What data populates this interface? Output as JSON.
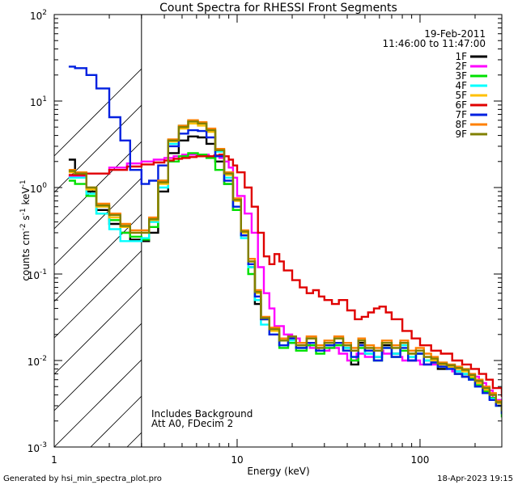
{
  "chart_data": {
    "type": "line",
    "title": "Count Spectra for RHESSI Front Segments",
    "xlabel": "Energy (keV)",
    "ylabel_main": "counts cm",
    "ylabel_exp1": "-2",
    "ylabel_mid": " s",
    "ylabel_exp2": "-1",
    "ylabel_end": " keV",
    "ylabel_exp3": "-1",
    "xscale": "log",
    "yscale": "log",
    "xlim": [
      1,
      280
    ],
    "ylim": [
      0.001,
      100
    ],
    "hatched_region_below_keV": 3,
    "x_ticks": [
      {
        "value": 1,
        "label": "1"
      },
      {
        "value": 10,
        "label": "10"
      },
      {
        "value": 100,
        "label": "100"
      }
    ],
    "y_ticks": [
      {
        "value": 0.001,
        "mant": "10",
        "exp": "-3"
      },
      {
        "value": 0.01,
        "mant": "10",
        "exp": "-2"
      },
      {
        "value": 0.1,
        "mant": "10",
        "exp": "-1"
      },
      {
        "value": 1,
        "mant": "10",
        "exp": "0"
      },
      {
        "value": 10,
        "mant": "10",
        "exp": "1"
      },
      {
        "value": 100,
        "mant": "10",
        "exp": "2"
      }
    ],
    "legend_position": "top-right",
    "date": "19-Feb-2011",
    "time_range": "11:46:00 to 11:47:00",
    "annotations": [
      "Includes Background",
      "Att A0, FDecim 2"
    ],
    "series": [
      {
        "name": "1F",
        "color": "#000000",
        "x": [
          1.2,
          1.3,
          1.5,
          1.7,
          2.0,
          2.3,
          2.6,
          3.0,
          3.3,
          3.7,
          4.2,
          4.8,
          5.4,
          6.1,
          6.8,
          7.6,
          8.5,
          9.5,
          10.5,
          11.5,
          12.5,
          13.5,
          15,
          17,
          19,
          21,
          24,
          27,
          30,
          34,
          38,
          42,
          46,
          50,
          56,
          62,
          70,
          78,
          86,
          95,
          105,
          115,
          125,
          140,
          155,
          170,
          185,
          200,
          220,
          240,
          260,
          280
        ],
        "y": [
          2.1,
          1.5,
          0.9,
          0.55,
          0.38,
          0.3,
          0.25,
          0.24,
          0.3,
          0.9,
          2.5,
          3.5,
          3.9,
          3.8,
          3.2,
          2.0,
          1.1,
          0.55,
          0.28,
          0.12,
          0.045,
          0.03,
          0.02,
          0.015,
          0.016,
          0.014,
          0.018,
          0.013,
          0.015,
          0.016,
          0.014,
          0.009,
          0.016,
          0.013,
          0.011,
          0.015,
          0.012,
          0.016,
          0.01,
          0.012,
          0.009,
          0.0095,
          0.008,
          0.0085,
          0.007,
          0.0065,
          0.006,
          0.005,
          0.0042,
          0.0036,
          0.003,
          0.0025
        ]
      },
      {
        "name": "2F",
        "color": "#ff00ff",
        "x": [
          1.2,
          1.5,
          2.0,
          2.5,
          3.0,
          3.5,
          4.0,
          4.5,
          5.0,
          5.5,
          6.0,
          6.5,
          7.0,
          7.5,
          8.0,
          8.5,
          9.0,
          9.5,
          10,
          11,
          12,
          13,
          14,
          15,
          16,
          18,
          20,
          22,
          25,
          28,
          32,
          36,
          40,
          45,
          50,
          56,
          63,
          70,
          80,
          90,
          100,
          115,
          130,
          150,
          170,
          190,
          210,
          230,
          250,
          280
        ],
        "y": [
          1.35,
          1.45,
          1.7,
          1.9,
          2.0,
          2.1,
          2.2,
          2.3,
          2.4,
          2.4,
          2.4,
          2.4,
          2.3,
          2.3,
          2.2,
          2.0,
          1.7,
          1.3,
          0.8,
          0.5,
          0.3,
          0.12,
          0.06,
          0.04,
          0.025,
          0.02,
          0.018,
          0.016,
          0.014,
          0.013,
          0.014,
          0.012,
          0.01,
          0.012,
          0.011,
          0.013,
          0.012,
          0.011,
          0.01,
          0.01,
          0.009,
          0.009,
          0.0085,
          0.0075,
          0.007,
          0.0065,
          0.0055,
          0.0045,
          0.0035,
          0.003
        ]
      },
      {
        "name": "3F",
        "color": "#00e000",
        "x": [
          1.2,
          1.3,
          1.5,
          1.7,
          2.0,
          2.3,
          2.6,
          3.0,
          3.3,
          3.7,
          4.2,
          4.8,
          5.4,
          6.1,
          6.8,
          7.6,
          8.5,
          9.5,
          10.5,
          11.5,
          12.5,
          13.5,
          15,
          17,
          19,
          21,
          24,
          27,
          30,
          34,
          38,
          42,
          46,
          50,
          56,
          62,
          70,
          78,
          86,
          95,
          105,
          115,
          125,
          140,
          155,
          170,
          185,
          200,
          220,
          240,
          260,
          280
        ],
        "y": [
          1.2,
          1.1,
          0.8,
          0.5,
          0.42,
          0.3,
          0.27,
          0.25,
          0.35,
          1.2,
          2.0,
          2.3,
          2.5,
          2.4,
          2.2,
          1.6,
          1.1,
          0.55,
          0.3,
          0.1,
          0.05,
          0.03,
          0.02,
          0.014,
          0.016,
          0.013,
          0.015,
          0.012,
          0.014,
          0.015,
          0.013,
          0.01,
          0.014,
          0.012,
          0.01,
          0.014,
          0.011,
          0.013,
          0.011,
          0.012,
          0.01,
          0.0095,
          0.009,
          0.0085,
          0.0075,
          0.007,
          0.0062,
          0.0052,
          0.0044,
          0.0037,
          0.003,
          0.0022
        ]
      },
      {
        "name": "4F",
        "color": "#00ffff",
        "x": [
          1.2,
          1.3,
          1.5,
          1.7,
          2.0,
          2.3,
          2.6,
          3.0,
          3.3,
          3.7,
          4.2,
          4.8,
          5.4,
          6.1,
          6.8,
          7.6,
          8.5,
          9.5,
          10.5,
          11.5,
          12.5,
          13.5,
          15,
          17,
          19,
          21,
          24,
          27,
          30,
          34,
          38,
          42,
          46,
          50,
          56,
          62,
          70,
          78,
          86,
          95,
          105,
          115,
          125,
          140,
          155,
          170,
          185,
          200,
          220,
          240,
          260,
          280
        ],
        "y": [
          1.3,
          1.3,
          0.85,
          0.5,
          0.33,
          0.24,
          0.24,
          0.26,
          0.4,
          1.0,
          3.2,
          5.2,
          5.8,
          5.6,
          4.5,
          2.6,
          1.3,
          0.6,
          0.26,
          0.12,
          0.05,
          0.026,
          0.02,
          0.015,
          0.017,
          0.014,
          0.016,
          0.013,
          0.015,
          0.016,
          0.014,
          0.011,
          0.015,
          0.012,
          0.011,
          0.014,
          0.012,
          0.015,
          0.011,
          0.012,
          0.01,
          0.0095,
          0.0085,
          0.008,
          0.0075,
          0.007,
          0.006,
          0.005,
          0.0042,
          0.0036,
          0.003,
          0.0024
        ]
      },
      {
        "name": "5F",
        "color": "#ffc000",
        "x": [
          1.2,
          1.3,
          1.5,
          1.7,
          2.0,
          2.3,
          2.6,
          3.0,
          3.3,
          3.7,
          4.2,
          4.8,
          5.4,
          6.1,
          6.8,
          7.6,
          8.5,
          9.5,
          10.5,
          11.5,
          12.5,
          13.5,
          15,
          17,
          19,
          21,
          24,
          27,
          30,
          34,
          38,
          42,
          46,
          50,
          56,
          62,
          70,
          78,
          86,
          95,
          105,
          115,
          125,
          140,
          155,
          170,
          185,
          200,
          220,
          240,
          260,
          280
        ],
        "y": [
          1.5,
          1.4,
          0.95,
          0.6,
          0.45,
          0.35,
          0.3,
          0.3,
          0.42,
          1.1,
          3.4,
          4.8,
          5.5,
          5.2,
          4.4,
          2.7,
          1.4,
          0.7,
          0.3,
          0.14,
          0.06,
          0.03,
          0.022,
          0.017,
          0.018,
          0.015,
          0.018,
          0.014,
          0.016,
          0.018,
          0.015,
          0.013,
          0.017,
          0.014,
          0.013,
          0.016,
          0.014,
          0.016,
          0.012,
          0.013,
          0.011,
          0.01,
          0.009,
          0.0085,
          0.008,
          0.0075,
          0.0065,
          0.0055,
          0.0046,
          0.004,
          0.0032,
          0.0025
        ]
      },
      {
        "name": "6F",
        "color": "#e00000",
        "x": [
          1.2,
          1.5,
          2.0,
          2.5,
          3.0,
          3.5,
          4.0,
          4.5,
          5.0,
          5.5,
          6.0,
          6.5,
          7.0,
          7.5,
          8.0,
          8.5,
          9.0,
          9.5,
          10,
          11,
          12,
          13,
          14,
          15,
          16,
          17,
          18,
          20,
          22,
          24,
          26,
          28,
          30,
          33,
          36,
          40,
          44,
          48,
          52,
          56,
          60,
          65,
          70,
          80,
          90,
          100,
          115,
          130,
          150,
          170,
          190,
          210,
          230,
          250,
          280
        ],
        "y": [
          1.4,
          1.45,
          1.6,
          1.75,
          1.85,
          1.95,
          2.05,
          2.15,
          2.2,
          2.25,
          2.3,
          2.3,
          2.3,
          2.35,
          2.4,
          2.3,
          2.1,
          1.8,
          1.5,
          1.0,
          0.6,
          0.3,
          0.16,
          0.13,
          0.17,
          0.14,
          0.11,
          0.085,
          0.07,
          0.06,
          0.065,
          0.055,
          0.05,
          0.045,
          0.05,
          0.038,
          0.03,
          0.032,
          0.036,
          0.04,
          0.042,
          0.036,
          0.03,
          0.022,
          0.018,
          0.015,
          0.013,
          0.012,
          0.01,
          0.009,
          0.008,
          0.007,
          0.006,
          0.0048,
          0.0038
        ]
      },
      {
        "name": "7F",
        "color": "#0020e0",
        "x": [
          1.2,
          1.3,
          1.5,
          1.7,
          2.0,
          2.3,
          2.6,
          3.0,
          3.3,
          3.7,
          4.2,
          4.8,
          5.4,
          6.1,
          6.8,
          7.6,
          8.5,
          9.5,
          10.5,
          11.5,
          12.5,
          13.5,
          15,
          17,
          19,
          21,
          24,
          27,
          30,
          34,
          38,
          42,
          46,
          50,
          56,
          62,
          70,
          78,
          86,
          95,
          105,
          115,
          125,
          140,
          155,
          170,
          185,
          200,
          220,
          240,
          260,
          280
        ],
        "y": [
          25,
          24,
          20,
          14,
          6.5,
          3.5,
          1.6,
          1.1,
          1.2,
          1.8,
          3.0,
          4.2,
          4.6,
          4.5,
          3.8,
          2.3,
          1.2,
          0.6,
          0.28,
          0.13,
          0.055,
          0.03,
          0.02,
          0.015,
          0.018,
          0.014,
          0.016,
          0.013,
          0.015,
          0.016,
          0.013,
          0.011,
          0.015,
          0.013,
          0.01,
          0.014,
          0.011,
          0.014,
          0.01,
          0.012,
          0.009,
          0.0095,
          0.0085,
          0.008,
          0.007,
          0.0065,
          0.006,
          0.005,
          0.0042,
          0.0035,
          0.003,
          0.0024
        ]
      },
      {
        "name": "8F",
        "color": "#ff8000",
        "x": [
          1.2,
          1.3,
          1.5,
          1.7,
          2.0,
          2.3,
          2.6,
          3.0,
          3.3,
          3.7,
          4.2,
          4.8,
          5.4,
          6.1,
          6.8,
          7.6,
          8.5,
          9.5,
          10.5,
          11.5,
          12.5,
          13.5,
          15,
          17,
          19,
          21,
          24,
          27,
          30,
          34,
          38,
          42,
          46,
          50,
          56,
          62,
          70,
          78,
          86,
          95,
          105,
          115,
          125,
          140,
          155,
          170,
          185,
          200,
          220,
          240,
          260,
          280
        ],
        "y": [
          1.6,
          1.5,
          1.0,
          0.65,
          0.5,
          0.38,
          0.32,
          0.32,
          0.45,
          1.2,
          3.6,
          5.2,
          6.0,
          5.7,
          4.8,
          2.8,
          1.5,
          0.75,
          0.32,
          0.15,
          0.065,
          0.032,
          0.024,
          0.018,
          0.019,
          0.016,
          0.019,
          0.015,
          0.017,
          0.019,
          0.016,
          0.014,
          0.018,
          0.015,
          0.014,
          0.017,
          0.015,
          0.017,
          0.013,
          0.014,
          0.012,
          0.011,
          0.0095,
          0.009,
          0.0085,
          0.008,
          0.007,
          0.006,
          0.005,
          0.0042,
          0.0034,
          0.0027
        ]
      },
      {
        "name": "9F",
        "color": "#808000",
        "x": [
          1.2,
          1.3,
          1.5,
          1.7,
          2.0,
          2.3,
          2.6,
          3.0,
          3.3,
          3.7,
          4.2,
          4.8,
          5.4,
          6.1,
          6.8,
          7.6,
          8.5,
          9.5,
          10.5,
          11.5,
          12.5,
          13.5,
          15,
          17,
          19,
          21,
          24,
          27,
          30,
          34,
          38,
          42,
          46,
          50,
          56,
          62,
          70,
          78,
          86,
          95,
          105,
          115,
          125,
          140,
          155,
          170,
          185,
          200,
          220,
          240,
          260,
          280
        ],
        "y": [
          1.55,
          1.45,
          1.0,
          0.62,
          0.48,
          0.36,
          0.3,
          0.3,
          0.43,
          1.15,
          3.5,
          5.0,
          5.8,
          5.5,
          4.6,
          2.7,
          1.45,
          0.72,
          0.31,
          0.14,
          0.062,
          0.031,
          0.023,
          0.017,
          0.019,
          0.015,
          0.018,
          0.014,
          0.016,
          0.018,
          0.015,
          0.013,
          0.017,
          0.014,
          0.013,
          0.016,
          0.014,
          0.016,
          0.012,
          0.013,
          0.011,
          0.0105,
          0.0092,
          0.0088,
          0.0082,
          0.0078,
          0.0068,
          0.0058,
          0.0048,
          0.004,
          0.0033,
          0.0026
        ]
      }
    ]
  },
  "footer": {
    "left": "Generated by hsi_min_spectra_plot.pro",
    "right": "18-Apr-2023 19:15"
  }
}
